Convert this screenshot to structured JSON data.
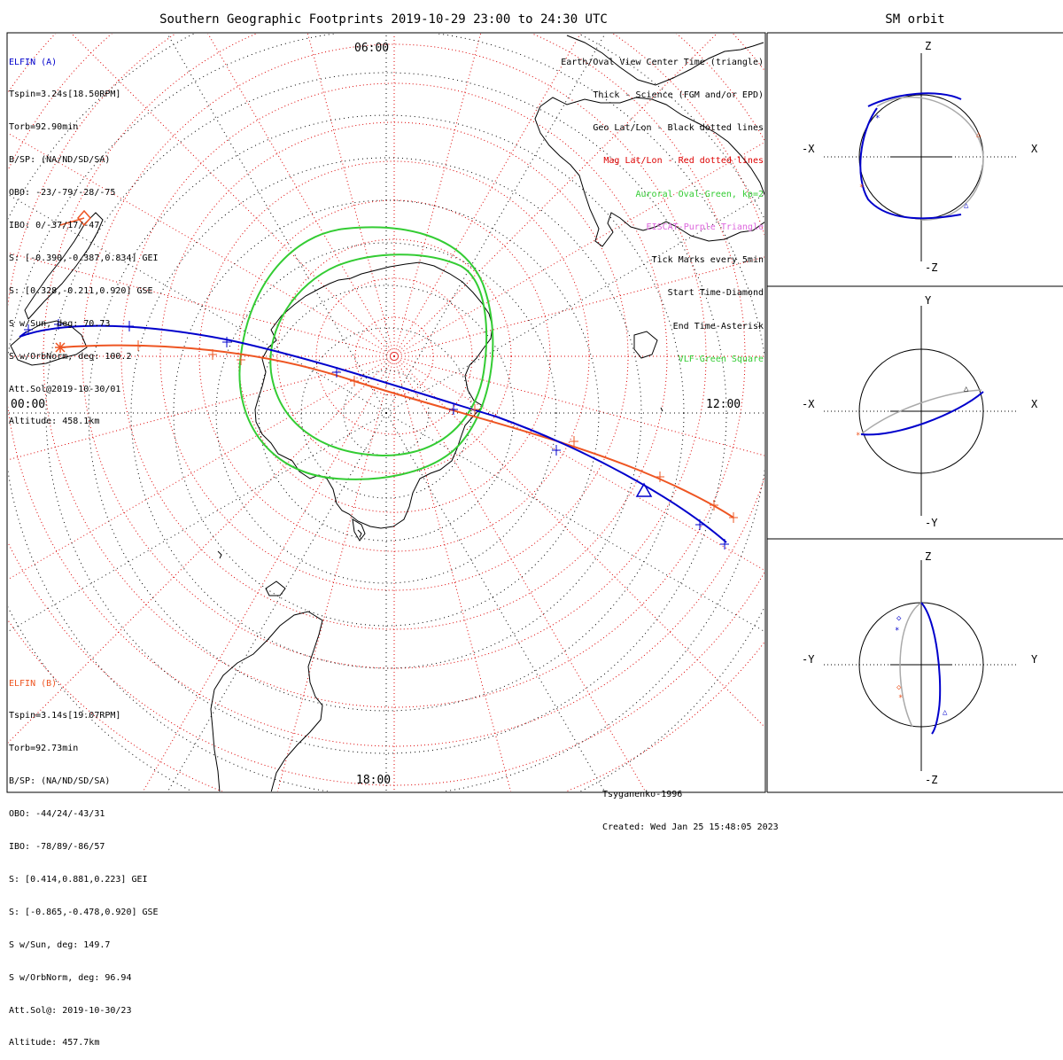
{
  "title": "Southern Geographic Footprints 2019-10-29 23:00 to 24:30 UTC",
  "sm_title": "SM orbit",
  "clock_labels": {
    "top": "06:00",
    "left": "00:00",
    "right": "12:00",
    "bottom": "18:00"
  },
  "elfin_a": {
    "name": "ELFIN (A)",
    "color": "#0000cc",
    "lines": [
      "Tspin=3.24s[18.50RPM]",
      "Torb=92.90min",
      "B/SP: (NA/ND/SD/SA)",
      "OBO: -23/-79/-28/-75",
      "IBO: 0/-37/17/-47",
      "S: [-0.390,-0.387,0.834] GEI",
      "S: [0.328,-0.211,0.920] GSE",
      "S w/Sun, deg: 70.73",
      "S w/OrbNorm, deg: 100.2",
      "Att.Sol@2019-10-30/01",
      "Altitude: 458.1km"
    ]
  },
  "elfin_b": {
    "name": "ELFIN (B)",
    "color": "#ee5522",
    "lines": [
      "Tspin=3.14s[19.07RPM]",
      "Torb=92.73min",
      "B/SP: (NA/ND/SD/SA)",
      "OBO: -44/24/-43/31",
      "IBO: -78/89/-86/57",
      "S: [0.414,0.881,0.223] GEI",
      "S: [-0.865,-0.478,0.920] GSE",
      "S w/Sun, deg: 149.7",
      "S w/OrbNorm, deg: 96.94",
      "Att.Sol@: 2019-10-30/23",
      "Altitude: 457.7km"
    ]
  },
  "legend": [
    {
      "text": "Earth/Oval View Center Time (triangle)",
      "color": "#000000"
    },
    {
      "text": "Thick - Science (FGM and/or EPD)",
      "color": "#000000"
    },
    {
      "text": "Geo Lat/Lon - Black dotted lines",
      "color": "#000000"
    },
    {
      "text": "Mag Lat/Lon - Red dotted lines",
      "color": "#dd0000"
    },
    {
      "text": "Auroral Oval-Green, kp=2",
      "color": "#33cc33"
    },
    {
      "text": "EISCAT-Purple Triangle",
      "color": "#dd66dd"
    },
    {
      "text": "Tick Marks every 5min",
      "color": "#000000"
    },
    {
      "text": "Start Time-Diamond",
      "color": "#000000"
    },
    {
      "text": "End Time-Asterisk",
      "color": "#000000"
    },
    {
      "text": "VLF-Green Square",
      "color": "#33cc33"
    }
  ],
  "credit": {
    "model": "Tsyganenko-1996",
    "created": "Created: Wed Jan 25 15:48:05 2023"
  },
  "sm_panels": [
    {
      "top": "Z",
      "bottom": "-Z",
      "left": "-X",
      "right": "X"
    },
    {
      "top": "Y",
      "bottom": "-Y",
      "left": "-X",
      "right": "X"
    },
    {
      "top": "Z",
      "bottom": "-Z",
      "left": "-Y",
      "right": "Y"
    }
  ],
  "colors": {
    "geo_grid": "#000000",
    "mag_grid": "#dd0000",
    "auroral_oval": "#33cc33",
    "elfin_a_track": "#0000cc",
    "elfin_b_track": "#ee5522",
    "sm_orbit_gray": "#aaaaaa"
  }
}
